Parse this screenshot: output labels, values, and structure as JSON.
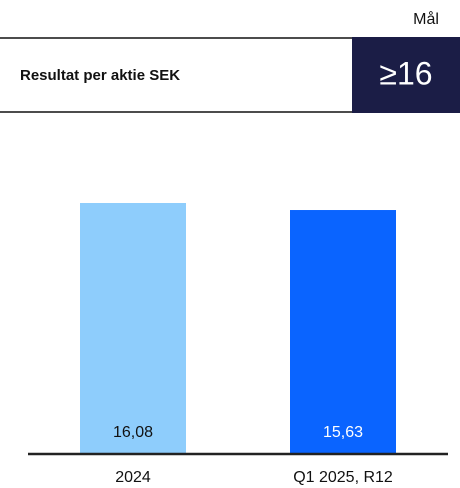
{
  "chart_data": {
    "type": "bar",
    "title": "Resultat per aktie SEK",
    "target_label": "Mål",
    "target": "≥16",
    "categories": [
      "2024",
      "Q1 2025, R12"
    ],
    "values": [
      16.08,
      15.63
    ],
    "value_labels": [
      "16,08",
      "15,63"
    ],
    "colors": [
      "#8ecdfc",
      "#0a64ff"
    ]
  }
}
